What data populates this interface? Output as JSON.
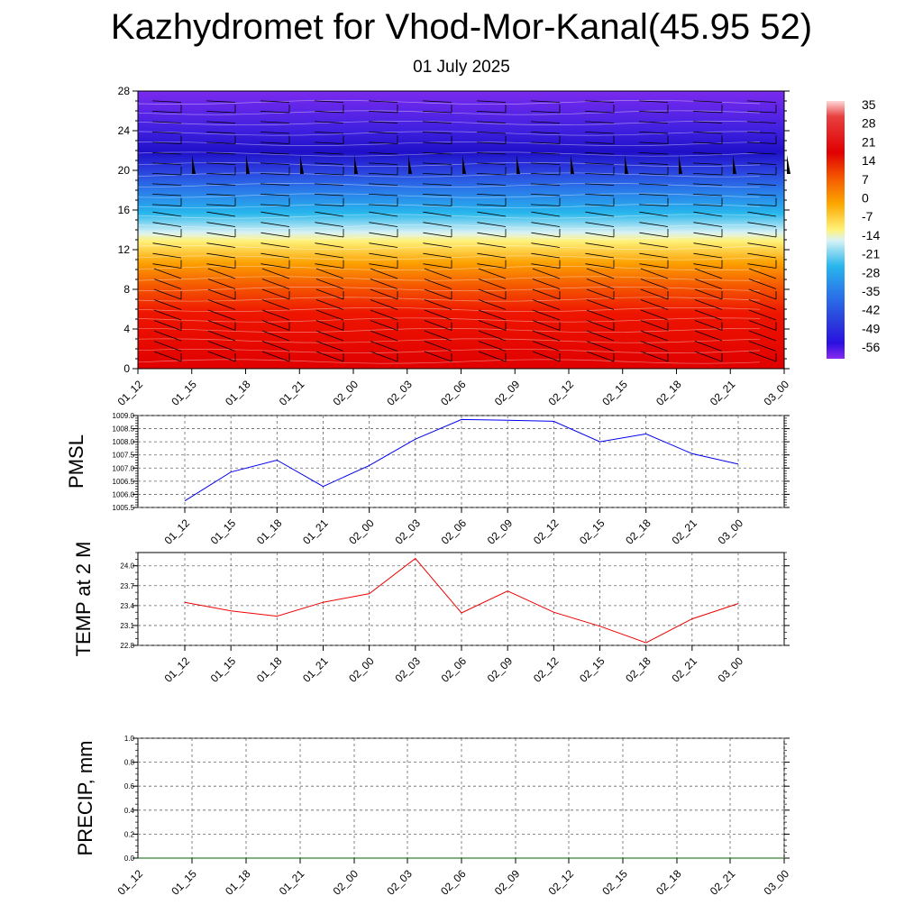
{
  "header": {
    "title": "Kazhydromet for Vhod-Mor-Kanal(45.95 52)",
    "subtitle": "01 July 2025"
  },
  "colors": {
    "pmsl_line": "#0000ee",
    "temp_line": "#ee0000",
    "precip_line": "#006400"
  },
  "chart_data": [
    {
      "type": "heatmap",
      "title": "",
      "ylabel": "",
      "x_ticks": [
        "01_12",
        "01_15",
        "01_18",
        "01_21",
        "02_00",
        "02_03",
        "02_06",
        "02_09",
        "02_12",
        "02_15",
        "02_18",
        "02_21",
        "03_00"
      ],
      "y_ticks": [
        "0",
        "4",
        "8",
        "12",
        "16",
        "20",
        "24",
        "28"
      ],
      "ylim": [
        0,
        28
      ],
      "colorbar": {
        "labels": [
          "35",
          "28",
          "21",
          "14",
          "7",
          "0",
          "-7",
          "-14",
          "-21",
          "-28",
          "-35",
          "-42",
          "-49",
          "-56"
        ]
      },
      "wind_barbs": true
    },
    {
      "type": "line",
      "ylabel": "PMSL",
      "categories": [
        "01_12",
        "01_15",
        "01_18",
        "01_21",
        "02_00",
        "02_03",
        "02_06",
        "02_09",
        "02_12",
        "02_15",
        "02_18",
        "02_21",
        "03_00"
      ],
      "y_ticks": [
        "1005.5",
        "1006.0",
        "1006.5",
        "1007.0",
        "1007.5",
        "1008.0",
        "1008.5",
        "1009.0"
      ],
      "ylim": [
        1005.5,
        1009.0
      ],
      "values": [
        1005.75,
        1006.85,
        1007.3,
        1006.3,
        1007.1,
        1008.1,
        1008.85,
        1008.82,
        1008.78,
        1008.0,
        1008.3,
        1007.55,
        1007.15
      ]
    },
    {
      "type": "line",
      "ylabel": "TEMP at 2 M",
      "categories": [
        "01_12",
        "01_15",
        "01_18",
        "01_21",
        "02_00",
        "02_03",
        "02_06",
        "02_09",
        "02_12",
        "02_15",
        "02_18",
        "02_21",
        "03_00"
      ],
      "y_ticks": [
        "22.8",
        "23.1",
        "23.4",
        "23.7",
        "24.0"
      ],
      "ylim": [
        22.8,
        24.2
      ],
      "values": [
        23.45,
        23.32,
        23.24,
        23.45,
        23.58,
        24.11,
        23.29,
        23.62,
        23.3,
        23.09,
        22.84,
        23.2,
        23.43
      ]
    },
    {
      "type": "line",
      "ylabel": "PRECIP, mm",
      "categories": [
        "01_12",
        "01_15",
        "01_18",
        "01_21",
        "02_00",
        "02_03",
        "02_06",
        "02_09",
        "02_12",
        "02_15",
        "02_18",
        "02_21",
        "03_00"
      ],
      "y_ticks": [
        "0.0",
        "0.2",
        "0.4",
        "0.6",
        "0.8",
        "1.0"
      ],
      "ylim": [
        0,
        1.0
      ],
      "values": [
        0,
        0,
        0,
        0,
        0,
        0,
        0,
        0,
        0,
        0,
        0,
        0,
        0
      ]
    }
  ]
}
